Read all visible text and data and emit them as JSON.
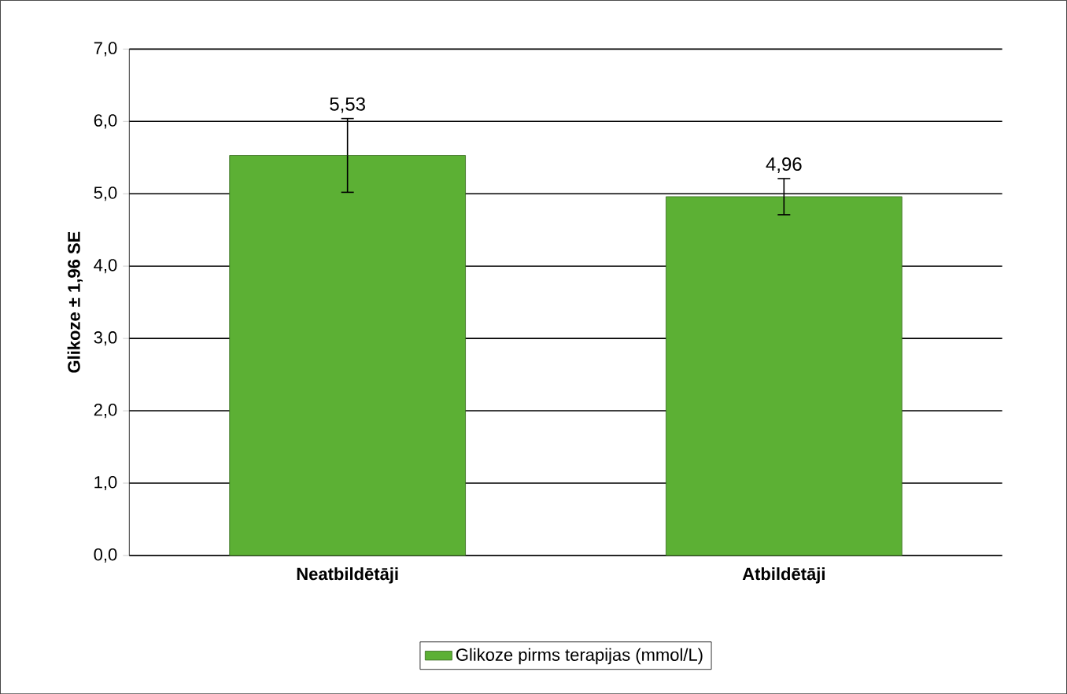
{
  "chart_data": {
    "type": "bar",
    "ylabel": "Glikoze ± 1,96 SE",
    "categories": [
      "Neatbildētāji",
      "Atbildētāji"
    ],
    "series": [
      {
        "name": "Glikoze pirms terapijas (mmol/L)",
        "color": "#5cb034",
        "values": [
          5.53,
          4.96
        ],
        "errors": [
          0.51,
          0.25
        ],
        "value_labels": [
          "5,53",
          "4,96"
        ]
      }
    ],
    "ylim": [
      0,
      7
    ],
    "yticks": [
      {
        "value": 0,
        "label": "0,0"
      },
      {
        "value": 1,
        "label": "1,0"
      },
      {
        "value": 2,
        "label": "2,0"
      },
      {
        "value": 3,
        "label": "3,0"
      },
      {
        "value": 4,
        "label": "4,0"
      },
      {
        "value": 5,
        "label": "5,0"
      },
      {
        "value": 6,
        "label": "6,0"
      },
      {
        "value": 7,
        "label": "7,0"
      }
    ],
    "grid": "y",
    "legend": "bottom"
  }
}
